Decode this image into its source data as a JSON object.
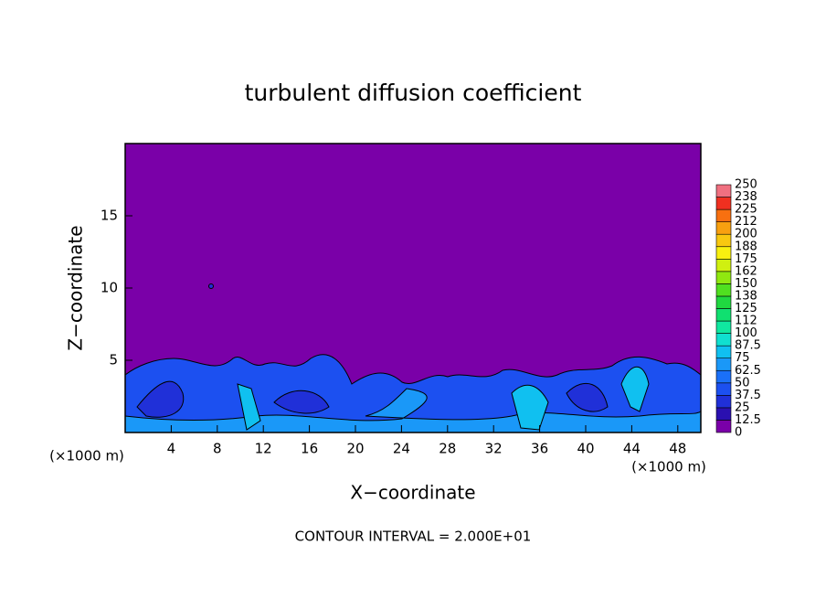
{
  "chart_data": {
    "type": "contour",
    "title": "turbulent diffusion coefficient",
    "x_label": "X−coordinate",
    "y_label": "Z−coordinate",
    "x_unit_labels": [
      "(×1000 m)",
      "(×1000 m)"
    ],
    "footnote": "CONTOUR INTERVAL = 2.000E+01",
    "xlim": [
      0,
      50
    ],
    "xticks": [
      4,
      8,
      12,
      16,
      20,
      24,
      28,
      32,
      36,
      40,
      44,
      48
    ],
    "ylim": [
      0,
      20
    ],
    "yticks": [
      5,
      10,
      15
    ],
    "colorbar": {
      "levels": [
        0,
        12.5,
        25,
        37.5,
        50,
        62.5,
        75,
        87.5,
        100,
        {
          "value": 112.5,
          "label": "112"
        },
        125,
        {
          "value": 137.5,
          "label": "138"
        },
        150,
        {
          "value": 162.5,
          "label": "162"
        },
        175,
        {
          "value": 187.5,
          "label": "188"
        },
        200,
        {
          "value": 212.5,
          "label": "212"
        },
        225,
        {
          "value": 237.5,
          "label": "238"
        },
        250
      ],
      "colors": [
        "#7a00a8",
        "#2a10b0",
        "#2030d8",
        "#1c50f0",
        "#1a70f8",
        "#1a98f8",
        "#10c0f0",
        "#10e0d0",
        "#10e8a0",
        "#10e070",
        "#20d840",
        "#50e020",
        "#90e810",
        "#d0f010",
        "#f8f010",
        "#f8c810",
        "#f8a010",
        "#f87010",
        "#f03020",
        "#f07080"
      ]
    }
  }
}
